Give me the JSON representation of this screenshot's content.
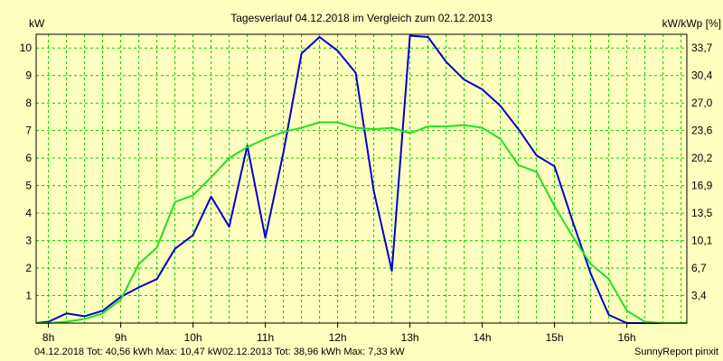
{
  "chart_data": {
    "type": "line",
    "title": "Tagesverlauf 04.12.2018 im Vergleich zum 02.12.2013",
    "ylabel_left": "kW",
    "ylabel_right": "kW/kWp [%]",
    "x_ticks": [
      "8h",
      "9h",
      "10h",
      "11h",
      "12h",
      "13h",
      "14h",
      "15h",
      "16h"
    ],
    "x_tick_values": [
      8,
      9,
      10,
      11,
      12,
      13,
      14,
      15,
      16
    ],
    "y_ticks": [
      1,
      2,
      3,
      4,
      5,
      6,
      7,
      8,
      9,
      10
    ],
    "y_ticks_right": [
      "3,4",
      "6,7",
      "10,1",
      "13,5",
      "16,9",
      "20,2",
      "23,6",
      "27,0",
      "30,4",
      "33,7"
    ],
    "xlim": [
      7.83,
      16.83
    ],
    "ylim": [
      0,
      10.5
    ],
    "grid": true,
    "grid_color": "#00d000",
    "series": [
      {
        "name": "04.12.2018",
        "color": "#0000d0",
        "x": [
          7.83,
          8.0,
          8.25,
          8.5,
          8.75,
          9.0,
          9.25,
          9.5,
          9.75,
          10.0,
          10.25,
          10.5,
          10.75,
          11.0,
          11.25,
          11.5,
          11.75,
          12.0,
          12.25,
          12.5,
          12.75,
          13.0,
          13.25,
          13.5,
          13.75,
          14.0,
          14.25,
          14.5,
          14.75,
          15.0,
          15.25,
          15.5,
          15.75,
          16.0,
          16.25,
          16.5,
          16.83
        ],
        "y": [
          0.0,
          0.05,
          0.35,
          0.25,
          0.45,
          0.95,
          1.3,
          1.6,
          2.7,
          3.2,
          4.6,
          3.5,
          6.45,
          3.1,
          6.2,
          9.8,
          10.4,
          9.9,
          9.1,
          4.8,
          1.9,
          10.45,
          10.4,
          9.5,
          8.85,
          8.5,
          7.9,
          7.05,
          6.1,
          5.7,
          3.7,
          1.8,
          0.3,
          0.0,
          0.0,
          0.0,
          0.0
        ]
      },
      {
        "name": "02.12.2013",
        "color": "#20e020",
        "x": [
          7.83,
          8.0,
          8.25,
          8.5,
          8.75,
          9.0,
          9.25,
          9.5,
          9.75,
          10.0,
          10.25,
          10.5,
          10.75,
          11.0,
          11.25,
          11.5,
          11.75,
          12.0,
          12.25,
          12.5,
          12.75,
          13.0,
          13.25,
          13.5,
          13.75,
          14.0,
          14.25,
          14.5,
          14.75,
          15.0,
          15.25,
          15.5,
          15.75,
          16.0,
          16.25,
          16.5,
          16.83
        ],
        "y": [
          0.0,
          0.0,
          0.05,
          0.15,
          0.35,
          0.85,
          2.15,
          2.75,
          4.4,
          4.65,
          5.3,
          6.0,
          6.4,
          6.7,
          6.95,
          7.1,
          7.3,
          7.3,
          7.1,
          7.05,
          7.1,
          6.9,
          7.15,
          7.15,
          7.2,
          7.1,
          6.7,
          5.75,
          5.5,
          4.25,
          3.15,
          2.15,
          1.6,
          0.45,
          0.05,
          0.0,
          0.0
        ]
      }
    ]
  },
  "footer": {
    "series1_label": "04.12.2018 Tot: 40,56 kWh Max: 10,47 kW",
    "series1_color": "#0000d0",
    "series2_label": "02.12.2013 Tot: 38,96 kWh Max: 7,33 kW",
    "series2_color": "#20e020",
    "credit": "SunnyReport pinxit"
  }
}
